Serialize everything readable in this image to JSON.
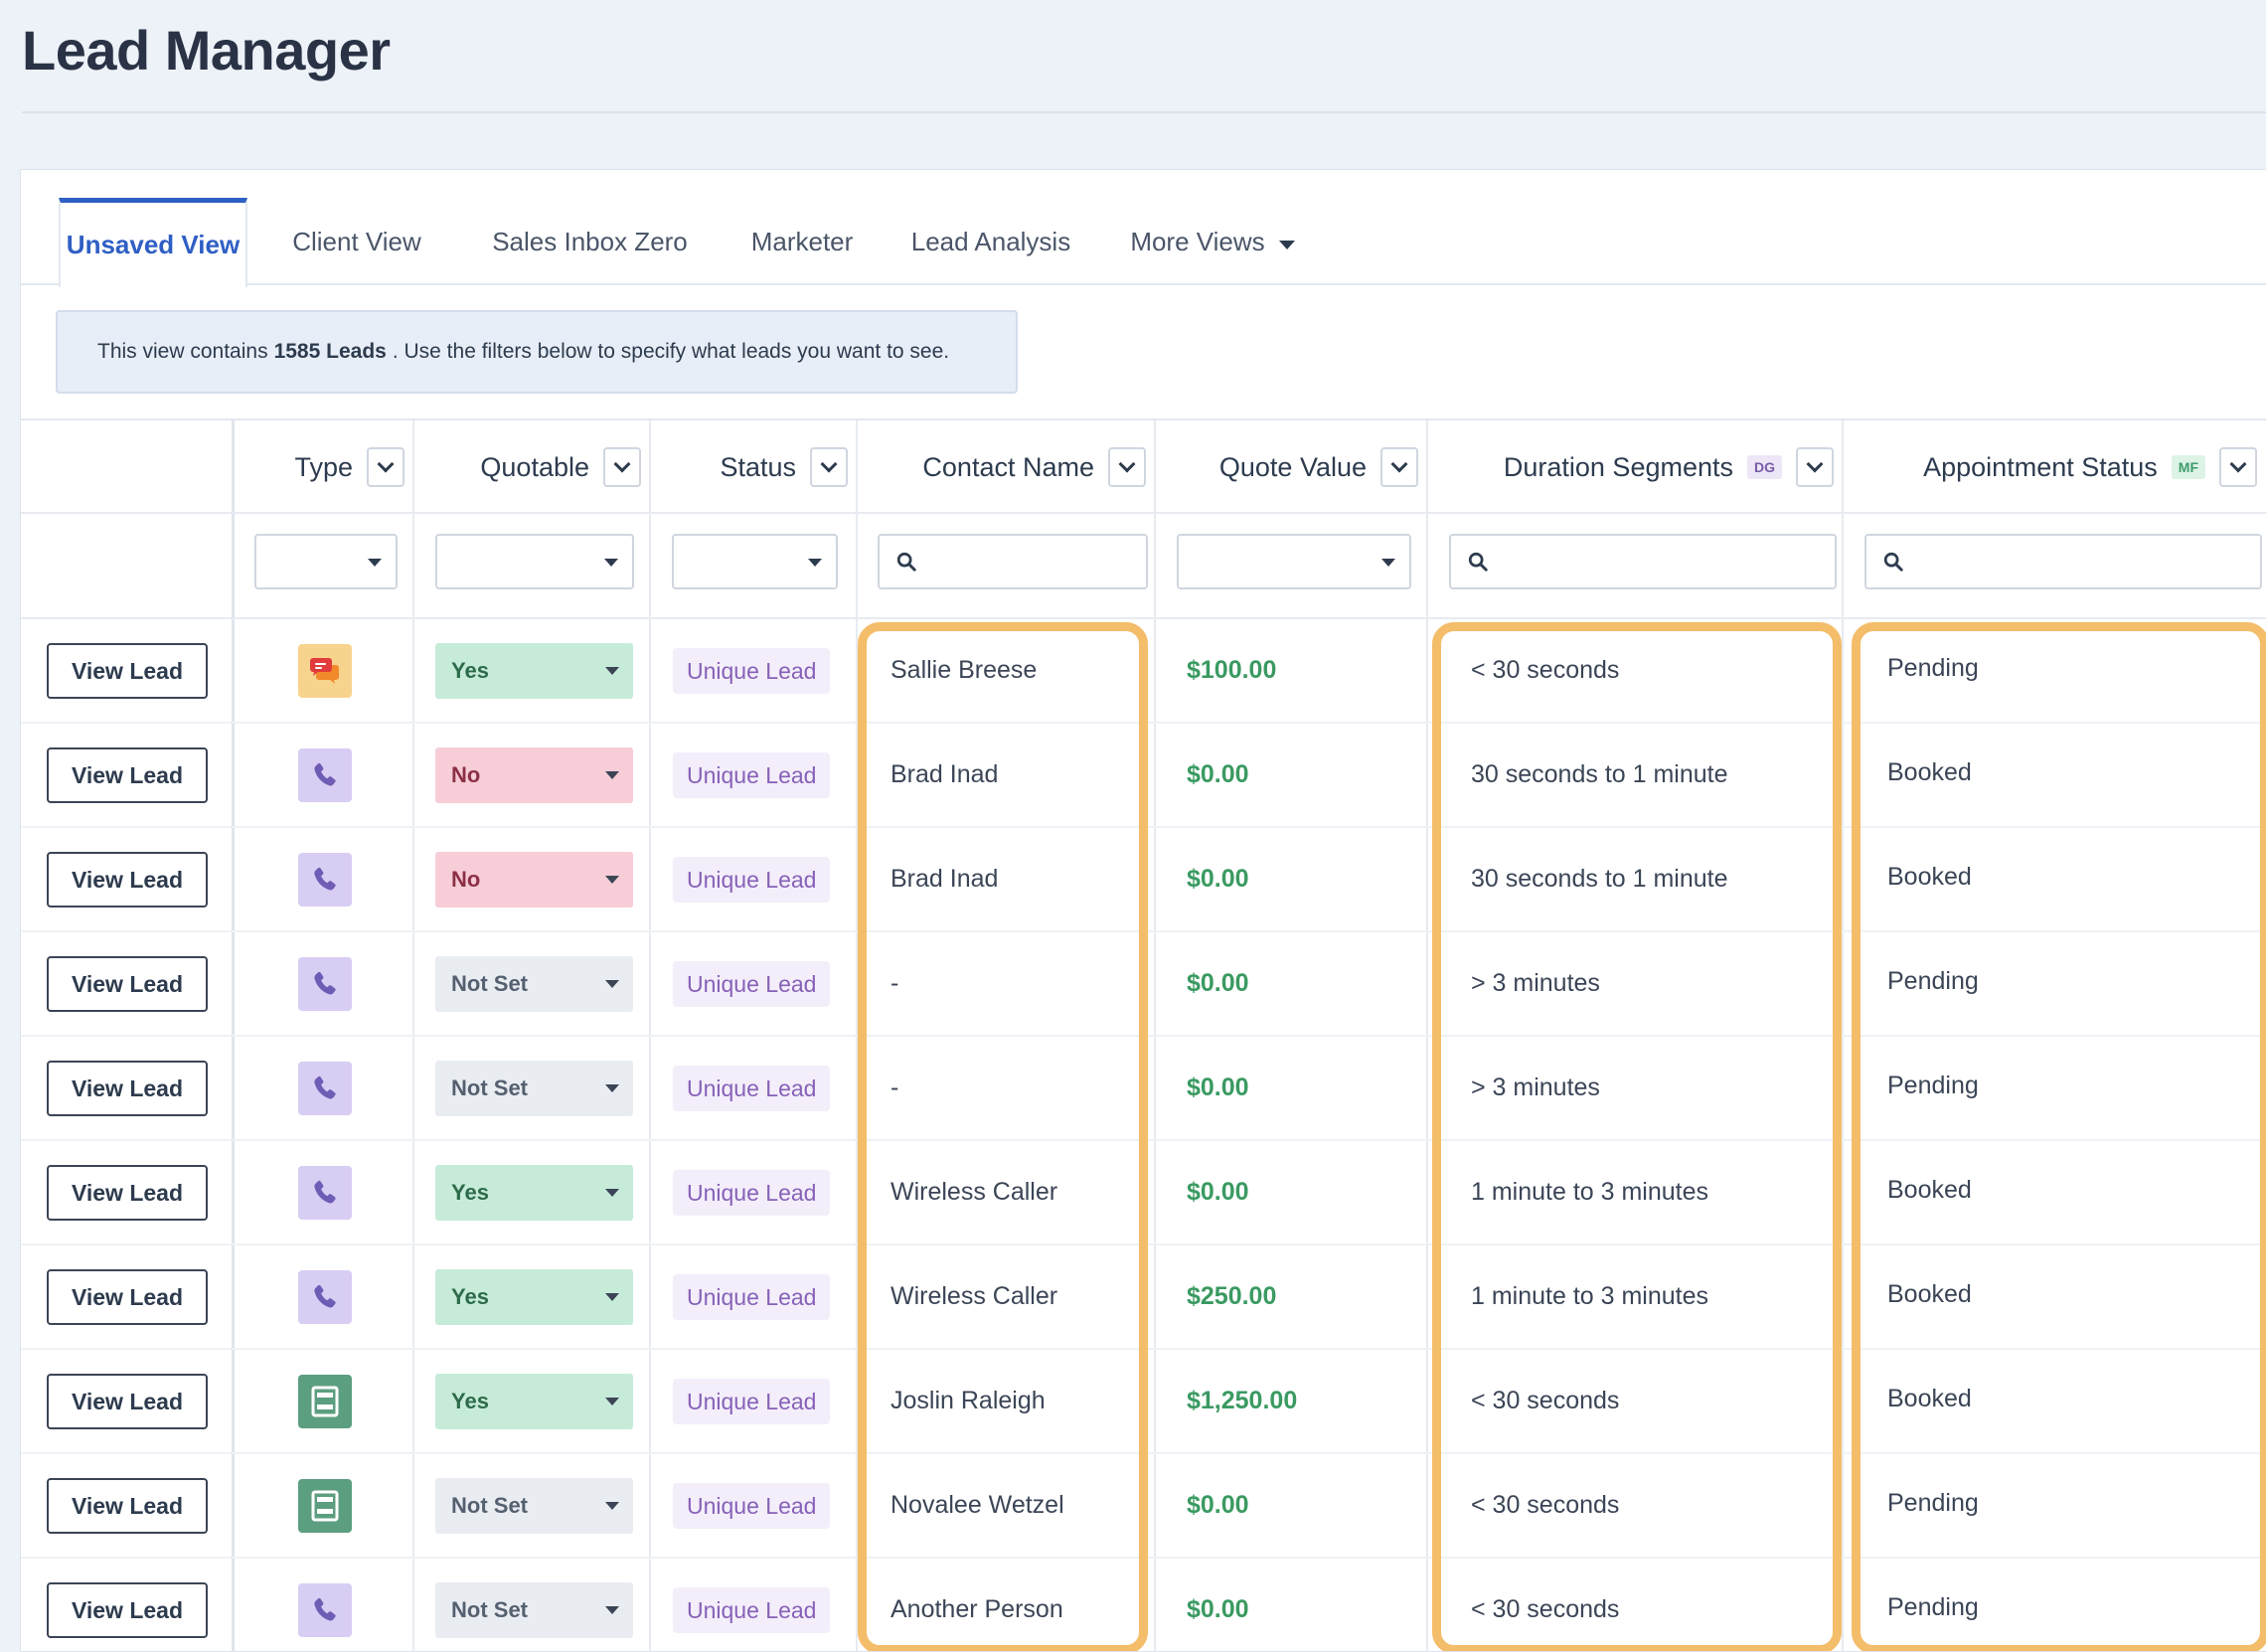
{
  "page": {
    "title": "Lead Manager"
  },
  "tabs": [
    {
      "label": "Unsaved View",
      "active": true
    },
    {
      "label": "Client View"
    },
    {
      "label": "Sales Inbox Zero"
    },
    {
      "label": "Marketer"
    },
    {
      "label": "Lead Analysis"
    },
    {
      "label": "More Views"
    }
  ],
  "notice": {
    "prefix": "This view contains",
    "count": "1585 Leads",
    "suffix": ". Use the filters below to specify what leads you want to see."
  },
  "columns": {
    "type": "Type",
    "quotable": "Quotable",
    "status": "Status",
    "contact_name": "Contact Name",
    "quote_value": "Quote Value",
    "duration": "Duration Segments",
    "duration_tag": "DG",
    "appointment": "Appointment Status",
    "appointment_tag": "MF"
  },
  "view_lead_label": "View Lead",
  "rows": [
    {
      "type": "chat",
      "quotable": "Yes",
      "status": "Unique Lead",
      "contact": "Sallie Breese",
      "quote": "$100.00",
      "duration": "< 30 seconds",
      "appointment": "Pending"
    },
    {
      "type": "phone",
      "quotable": "No",
      "status": "Unique Lead",
      "contact": "Brad Inad",
      "quote": "$0.00",
      "duration": "30 seconds to 1 minute",
      "appointment": "Booked"
    },
    {
      "type": "phone",
      "quotable": "No",
      "status": "Unique Lead",
      "contact": "Brad Inad",
      "quote": "$0.00",
      "duration": "30 seconds to 1 minute",
      "appointment": "Booked"
    },
    {
      "type": "phone",
      "quotable": "Not Set",
      "status": "Unique Lead",
      "contact": "-",
      "quote": "$0.00",
      "duration": "> 3 minutes",
      "appointment": "Pending"
    },
    {
      "type": "phone",
      "quotable": "Not Set",
      "status": "Unique Lead",
      "contact": "-",
      "quote": "$0.00",
      "duration": "> 3 minutes",
      "appointment": "Pending"
    },
    {
      "type": "phone",
      "quotable": "Yes",
      "status": "Unique Lead",
      "contact": "Wireless Caller",
      "quote": "$0.00",
      "duration": "1 minute to 3 minutes",
      "appointment": "Booked"
    },
    {
      "type": "phone",
      "quotable": "Yes",
      "status": "Unique Lead",
      "contact": "Wireless Caller",
      "quote": "$250.00",
      "duration": "1 minute to 3 minutes",
      "appointment": "Booked"
    },
    {
      "type": "form",
      "quotable": "Yes",
      "status": "Unique Lead",
      "contact": "Joslin Raleigh",
      "quote": "$1,250.00",
      "duration": "< 30 seconds",
      "appointment": "Booked"
    },
    {
      "type": "form",
      "quotable": "Not Set",
      "status": "Unique Lead",
      "contact": "Novalee Wetzel",
      "quote": "$0.00",
      "duration": "< 30 seconds",
      "appointment": "Pending"
    },
    {
      "type": "phone",
      "quotable": "Not Set",
      "status": "Unique Lead",
      "contact": "Another Person",
      "quote": "$0.00",
      "duration": "< 30 seconds",
      "appointment": "Pending"
    }
  ],
  "colors": {
    "accent": "#2f5fc4",
    "highlight": "#f4bd6a",
    "money": "#3a9a61",
    "yes": "#c6ecd9",
    "no": "#f7cdd7",
    "not_set": "#e9edf2",
    "status_badge": "#8761b8"
  }
}
